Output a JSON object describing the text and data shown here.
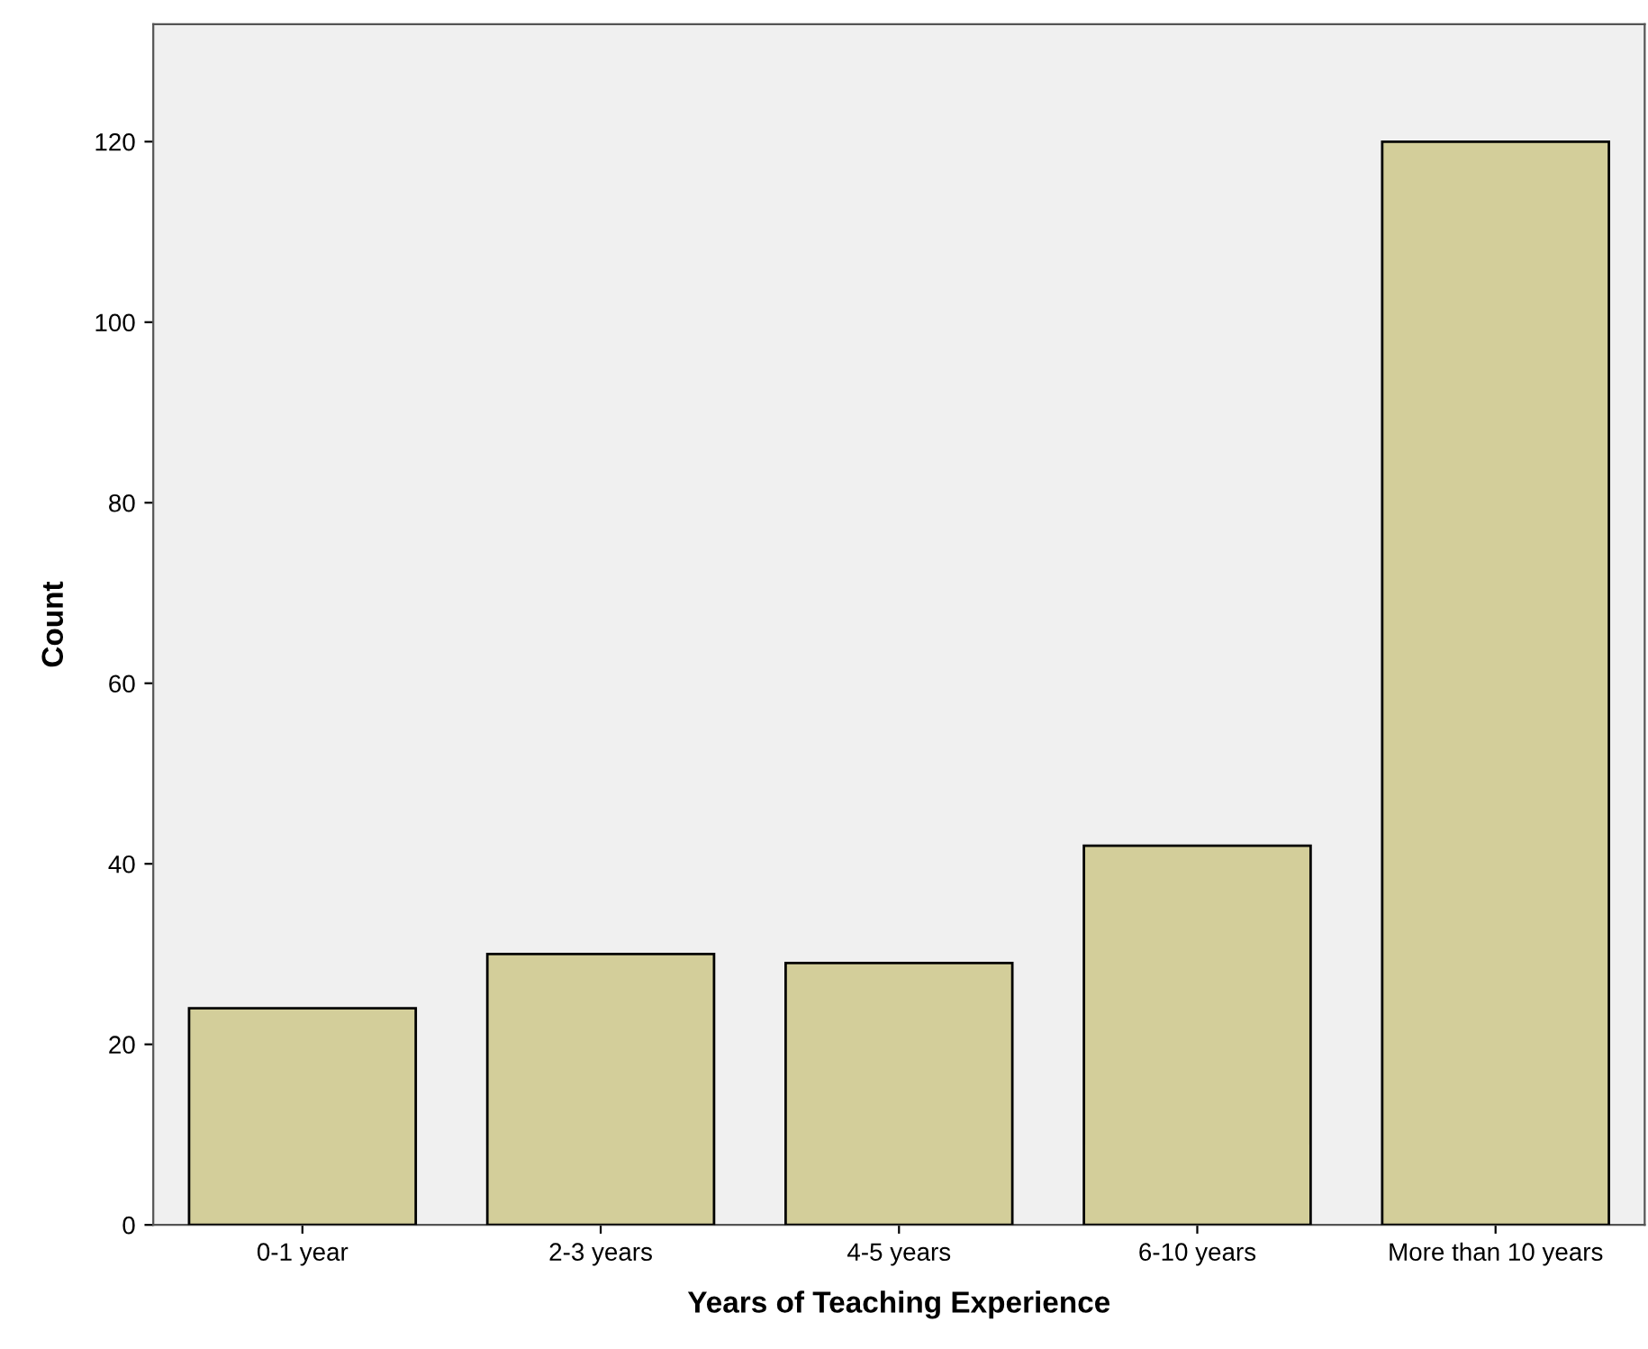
{
  "chart_data": {
    "type": "bar",
    "xlabel": "Years of Teaching Experience",
    "ylabel": "Count",
    "categories": [
      "0-1 year",
      "2-3 years",
      "4-5 years",
      "6-10 years",
      "More than 10 years"
    ],
    "values": [
      24,
      30,
      29,
      42,
      120
    ],
    "color": "#d3ce9a",
    "ylim": [
      0,
      133
    ],
    "yticks": [
      0,
      20,
      40,
      60,
      80,
      100,
      120
    ],
    "grid": false
  }
}
